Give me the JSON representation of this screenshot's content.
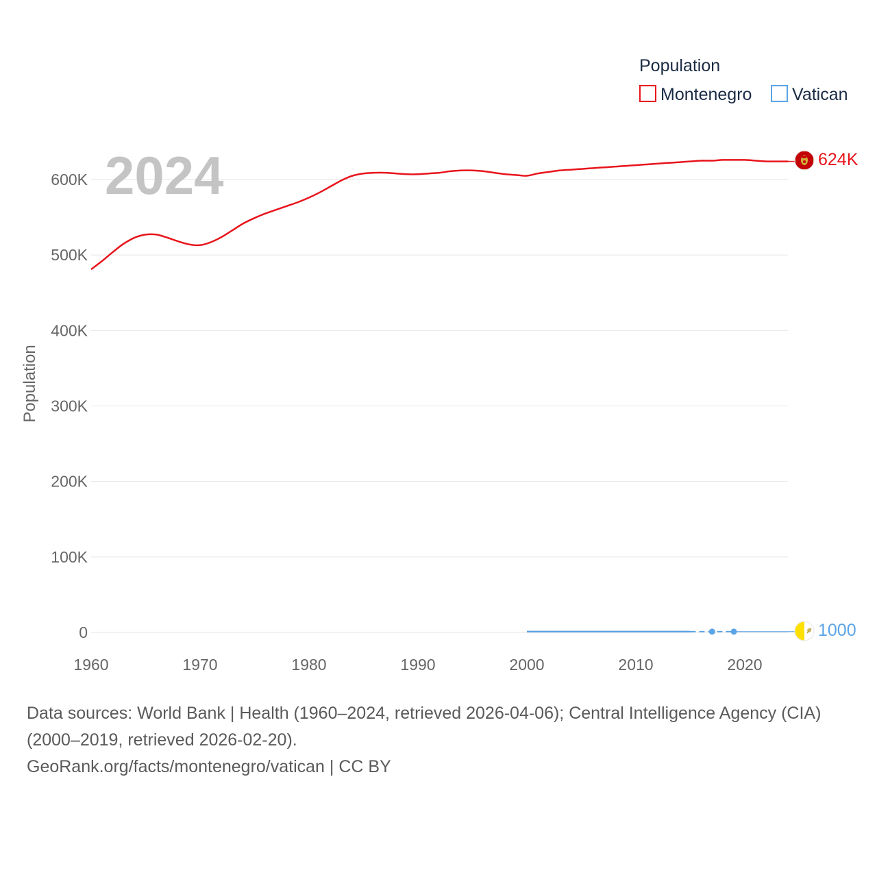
{
  "chart_data": {
    "type": "line",
    "title": "",
    "year_label": "2024",
    "ylabel": "Population",
    "xlabel": "",
    "ylim": [
      0,
      650000
    ],
    "xlim": [
      1960,
      2024
    ],
    "x_ticks": [
      1960,
      1970,
      1980,
      1990,
      2000,
      2010,
      2020
    ],
    "x_tick_labels": [
      "1960",
      "1970",
      "1980",
      "1990",
      "2000",
      "2010",
      "2020"
    ],
    "y_ticks": [
      0,
      100000,
      200000,
      300000,
      400000,
      500000,
      600000
    ],
    "y_tick_labels": [
      "0",
      "100K",
      "200K",
      "300K",
      "400K",
      "500K",
      "600K"
    ],
    "legend": {
      "title": "Population",
      "position": "top-right"
    },
    "series": [
      {
        "name": "Montenegro",
        "color": "#e8141b",
        "end_label": "624K",
        "flag_icon": "montenegro-flag-icon",
        "x": [
          1960,
          1961,
          1962,
          1963,
          1964,
          1965,
          1966,
          1967,
          1968,
          1969,
          1970,
          1971,
          1972,
          1973,
          1974,
          1975,
          1976,
          1977,
          1978,
          1979,
          1980,
          1981,
          1982,
          1983,
          1984,
          1985,
          1986,
          1987,
          1988,
          1989,
          1990,
          1991,
          1992,
          1993,
          1994,
          1995,
          1996,
          1997,
          1998,
          1999,
          2000,
          2001,
          2002,
          2003,
          2004,
          2005,
          2006,
          2007,
          2008,
          2009,
          2010,
          2011,
          2012,
          2013,
          2014,
          2015,
          2016,
          2017,
          2018,
          2019,
          2020,
          2021,
          2022,
          2023,
          2024
        ],
        "values": [
          481000,
          492000,
          504000,
          515000,
          523000,
          527000,
          527000,
          523000,
          518000,
          514000,
          513000,
          517000,
          524000,
          533000,
          542000,
          549000,
          555000,
          560000,
          565000,
          570000,
          576000,
          583000,
          591000,
          599000,
          605000,
          608000,
          609000,
          609000,
          608000,
          607000,
          607000,
          608000,
          609000,
          611000,
          612000,
          612000,
          611000,
          609000,
          607000,
          606000,
          605000,
          608000,
          610000,
          612000,
          613000,
          614000,
          615000,
          616000,
          617000,
          618000,
          619000,
          620000,
          621000,
          622000,
          623000,
          624000,
          625000,
          625000,
          626000,
          626000,
          626000,
          625000,
          624000,
          624000,
          624000
        ]
      },
      {
        "name": "Vatican",
        "color": "#5ba4e6",
        "end_label": "1000",
        "flag_icon": "vatican-flag-icon",
        "x": [
          2000,
          2001,
          2002,
          2003,
          2004,
          2005,
          2006,
          2007,
          2008,
          2009,
          2010,
          2011,
          2012,
          2013,
          2014,
          2015,
          2017,
          2019,
          2024
        ],
        "values": [
          1000,
          1000,
          1000,
          1000,
          1000,
          1000,
          1000,
          1000,
          1000,
          1000,
          1000,
          1000,
          1000,
          1000,
          1000,
          1000,
          1000,
          1000,
          1000
        ],
        "estimated_points_x": [
          2017,
          2019
        ]
      }
    ]
  },
  "footer": {
    "sources": "Data sources: World Bank | Health (1960–2024, retrieved 2026-04-06); Central Intelligence Agency (CIA) (2000–2019, retrieved 2026-02-20).",
    "credit": "GeoRank.org/facts/montenegro/vatican | CC BY"
  }
}
